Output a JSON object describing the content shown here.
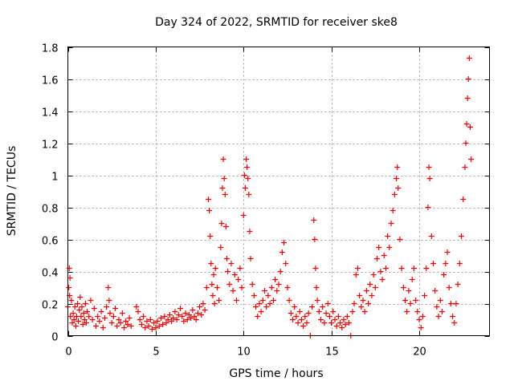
{
  "chart_data": {
    "type": "scatter",
    "title": "Day 324 of 2022, SRMTID for receiver ske8",
    "xlabel": "GPS time / hours",
    "ylabel": "SRMTID / TECUs",
    "xlim": [
      0,
      24
    ],
    "ylim": [
      0,
      1.8
    ],
    "xticks": [
      0,
      5,
      10,
      15,
      20
    ],
    "xtick_labels": [
      "0",
      "5",
      "10",
      "15",
      "20"
    ],
    "yticks": [
      0,
      0.2,
      0.4,
      0.6,
      0.8,
      1.0,
      1.2,
      1.4,
      1.6,
      1.8
    ],
    "ytick_labels": [
      "0",
      "0.2",
      "0.4",
      "0.6",
      "0.8",
      "1",
      "1.2",
      "1.4",
      "1.6",
      "1.8"
    ],
    "grid": true,
    "marker": "+",
    "color": "#ff0000",
    "series": [
      {
        "name": "SRMTID",
        "points": [
          [
            0.0,
            0.18
          ],
          [
            0.05,
            0.3
          ],
          [
            0.08,
            0.42
          ],
          [
            0.1,
            0.25
          ],
          [
            0.12,
            0.36
          ],
          [
            0.15,
            0.12
          ],
          [
            0.2,
            0.22
          ],
          [
            0.25,
            0.08
          ],
          [
            0.3,
            0.14
          ],
          [
            0.35,
            0.1
          ],
          [
            0.4,
            0.18
          ],
          [
            0.45,
            0.06
          ],
          [
            0.5,
            0.12
          ],
          [
            0.55,
            0.2
          ],
          [
            0.6,
            0.09
          ],
          [
            0.65,
            0.16
          ],
          [
            0.7,
            0.24
          ],
          [
            0.75,
            0.12
          ],
          [
            0.8,
            0.18
          ],
          [
            0.85,
            0.07
          ],
          [
            0.9,
            0.14
          ],
          [
            0.95,
            0.1
          ],
          [
            1.0,
            0.2
          ],
          [
            1.05,
            0.08
          ],
          [
            1.1,
            0.15
          ],
          [
            1.2,
            0.12
          ],
          [
            1.3,
            0.22
          ],
          [
            1.4,
            0.1
          ],
          [
            1.5,
            0.17
          ],
          [
            1.6,
            0.06
          ],
          [
            1.7,
            0.12
          ],
          [
            1.8,
            0.09
          ],
          [
            1.9,
            0.15
          ],
          [
            2.0,
            0.05
          ],
          [
            2.1,
            0.11
          ],
          [
            2.2,
            0.18
          ],
          [
            2.3,
            0.3
          ],
          [
            2.35,
            0.22
          ],
          [
            2.4,
            0.14
          ],
          [
            2.5,
            0.08
          ],
          [
            2.6,
            0.12
          ],
          [
            2.7,
            0.17
          ],
          [
            2.8,
            0.06
          ],
          [
            2.9,
            0.1
          ],
          [
            3.0,
            0.08
          ],
          [
            3.1,
            0.14
          ],
          [
            3.2,
            0.05
          ],
          [
            3.3,
            0.09
          ],
          [
            3.4,
            0.07
          ],
          [
            3.5,
            0.11
          ],
          [
            3.6,
            0.06
          ],
          [
            3.9,
            0.18
          ],
          [
            4.0,
            0.15
          ],
          [
            4.1,
            0.1
          ],
          [
            4.2,
            0.07
          ],
          [
            4.3,
            0.12
          ],
          [
            4.4,
            0.05
          ],
          [
            4.5,
            0.09
          ],
          [
            4.6,
            0.06
          ],
          [
            4.7,
            0.1
          ],
          [
            4.8,
            0.04
          ],
          [
            4.9,
            0.08
          ],
          [
            5.0,
            0.05
          ],
          [
            5.1,
            0.09
          ],
          [
            5.2,
            0.06
          ],
          [
            5.3,
            0.11
          ],
          [
            5.4,
            0.07
          ],
          [
            5.5,
            0.12
          ],
          [
            5.6,
            0.08
          ],
          [
            5.7,
            0.1
          ],
          [
            5.8,
            0.13
          ],
          [
            5.9,
            0.09
          ],
          [
            6.0,
            0.11
          ],
          [
            6.1,
            0.15
          ],
          [
            6.2,
            0.1
          ],
          [
            6.3,
            0.13
          ],
          [
            6.4,
            0.17
          ],
          [
            6.5,
            0.12
          ],
          [
            6.6,
            0.09
          ],
          [
            6.7,
            0.14
          ],
          [
            6.8,
            0.1
          ],
          [
            6.9,
            0.13
          ],
          [
            7.0,
            0.11
          ],
          [
            7.1,
            0.16
          ],
          [
            7.2,
            0.12
          ],
          [
            7.3,
            0.1
          ],
          [
            7.4,
            0.14
          ],
          [
            7.5,
            0.18
          ],
          [
            7.6,
            0.13
          ],
          [
            7.7,
            0.2
          ],
          [
            7.8,
            0.16
          ],
          [
            7.9,
            0.3
          ],
          [
            8.0,
            0.85
          ],
          [
            8.05,
            0.78
          ],
          [
            8.1,
            0.62
          ],
          [
            8.15,
            0.45
          ],
          [
            8.2,
            0.32
          ],
          [
            8.25,
            0.25
          ],
          [
            8.3,
            0.38
          ],
          [
            8.35,
            0.2
          ],
          [
            8.4,
            0.42
          ],
          [
            8.5,
            0.3
          ],
          [
            8.6,
            0.22
          ],
          [
            8.7,
            0.55
          ],
          [
            8.75,
            0.7
          ],
          [
            8.8,
            0.92
          ],
          [
            8.85,
            1.1
          ],
          [
            8.9,
            0.98
          ],
          [
            8.95,
            0.88
          ],
          [
            9.0,
            0.68
          ],
          [
            9.05,
            0.48
          ],
          [
            9.1,
            0.4
          ],
          [
            9.2,
            0.32
          ],
          [
            9.3,
            0.45
          ],
          [
            9.4,
            0.28
          ],
          [
            9.5,
            0.38
          ],
          [
            9.6,
            0.22
          ],
          [
            9.7,
            0.35
          ],
          [
            9.8,
            0.42
          ],
          [
            9.9,
            0.3
          ],
          [
            10.0,
            0.75
          ],
          [
            10.05,
            1.0
          ],
          [
            10.1,
            0.92
          ],
          [
            10.15,
            1.1
          ],
          [
            10.2,
            1.05
          ],
          [
            10.25,
            0.98
          ],
          [
            10.3,
            0.88
          ],
          [
            10.35,
            0.65
          ],
          [
            10.4,
            0.48
          ],
          [
            10.5,
            0.32
          ],
          [
            10.6,
            0.25
          ],
          [
            10.7,
            0.18
          ],
          [
            10.8,
            0.12
          ],
          [
            10.9,
            0.2
          ],
          [
            11.0,
            0.15
          ],
          [
            11.1,
            0.22
          ],
          [
            11.2,
            0.28
          ],
          [
            11.3,
            0.18
          ],
          [
            11.4,
            0.25
          ],
          [
            11.5,
            0.2
          ],
          [
            11.6,
            0.3
          ],
          [
            11.7,
            0.22
          ],
          [
            11.8,
            0.35
          ],
          [
            11.9,
            0.28
          ],
          [
            12.0,
            0.32
          ],
          [
            12.1,
            0.4
          ],
          [
            12.2,
            0.52
          ],
          [
            12.3,
            0.58
          ],
          [
            12.4,
            0.45
          ],
          [
            12.5,
            0.3
          ],
          [
            12.6,
            0.22
          ],
          [
            12.7,
            0.14
          ],
          [
            12.8,
            0.1
          ],
          [
            12.9,
            0.18
          ],
          [
            13.0,
            0.12
          ],
          [
            13.1,
            0.08
          ],
          [
            13.2,
            0.15
          ],
          [
            13.3,
            0.1
          ],
          [
            13.4,
            0.06
          ],
          [
            13.5,
            0.12
          ],
          [
            13.6,
            0.08
          ],
          [
            13.7,
            0.14
          ],
          [
            13.8,
            0.0
          ],
          [
            13.9,
            0.18
          ],
          [
            14.0,
            0.72
          ],
          [
            14.05,
            0.6
          ],
          [
            14.1,
            0.42
          ],
          [
            14.15,
            0.3
          ],
          [
            14.2,
            0.22
          ],
          [
            14.3,
            0.15
          ],
          [
            14.4,
            0.1
          ],
          [
            14.5,
            0.18
          ],
          [
            14.6,
            0.08
          ],
          [
            14.7,
            0.14
          ],
          [
            14.8,
            0.2
          ],
          [
            14.9,
            0.12
          ],
          [
            15.0,
            0.08
          ],
          [
            15.1,
            0.15
          ],
          [
            15.2,
            0.1
          ],
          [
            15.3,
            0.06
          ],
          [
            15.4,
            0.12
          ],
          [
            15.5,
            0.08
          ],
          [
            15.6,
            0.05
          ],
          [
            15.7,
            0.1
          ],
          [
            15.8,
            0.07
          ],
          [
            15.9,
            0.12
          ],
          [
            16.0,
            0.08
          ],
          [
            16.1,
            0.0
          ],
          [
            16.2,
            0.15
          ],
          [
            16.3,
            0.2
          ],
          [
            16.4,
            0.38
          ],
          [
            16.5,
            0.42
          ],
          [
            16.6,
            0.25
          ],
          [
            16.7,
            0.18
          ],
          [
            16.8,
            0.22
          ],
          [
            16.9,
            0.15
          ],
          [
            17.0,
            0.28
          ],
          [
            17.1,
            0.2
          ],
          [
            17.2,
            0.32
          ],
          [
            17.3,
            0.25
          ],
          [
            17.4,
            0.38
          ],
          [
            17.5,
            0.3
          ],
          [
            17.6,
            0.48
          ],
          [
            17.7,
            0.55
          ],
          [
            17.8,
            0.4
          ],
          [
            17.9,
            0.35
          ],
          [
            18.0,
            0.5
          ],
          [
            18.1,
            0.42
          ],
          [
            18.2,
            0.62
          ],
          [
            18.3,
            0.55
          ],
          [
            18.4,
            0.7
          ],
          [
            18.5,
            0.78
          ],
          [
            18.6,
            0.88
          ],
          [
            18.7,
            0.98
          ],
          [
            18.75,
            1.05
          ],
          [
            18.8,
            0.92
          ],
          [
            18.9,
            0.6
          ],
          [
            19.0,
            0.42
          ],
          [
            19.1,
            0.3
          ],
          [
            19.2,
            0.22
          ],
          [
            19.3,
            0.15
          ],
          [
            19.4,
            0.28
          ],
          [
            19.5,
            0.2
          ],
          [
            19.6,
            0.35
          ],
          [
            19.7,
            0.42
          ],
          [
            19.8,
            0.22
          ],
          [
            19.9,
            0.15
          ],
          [
            20.0,
            0.1
          ],
          [
            20.1,
            0.05
          ],
          [
            20.2,
            0.12
          ],
          [
            20.3,
            0.25
          ],
          [
            20.4,
            0.42
          ],
          [
            20.5,
            0.8
          ],
          [
            20.55,
            1.05
          ],
          [
            20.6,
            0.98
          ],
          [
            20.7,
            0.62
          ],
          [
            20.8,
            0.45
          ],
          [
            20.9,
            0.28
          ],
          [
            21.0,
            0.18
          ],
          [
            21.1,
            0.12
          ],
          [
            21.2,
            0.22
          ],
          [
            21.3,
            0.15
          ],
          [
            21.4,
            0.38
          ],
          [
            21.5,
            0.45
          ],
          [
            21.6,
            0.52
          ],
          [
            21.7,
            0.3
          ],
          [
            21.8,
            0.2
          ],
          [
            21.9,
            0.12
          ],
          [
            22.0,
            0.08
          ],
          [
            22.1,
            0.2
          ],
          [
            22.2,
            0.32
          ],
          [
            22.3,
            0.45
          ],
          [
            22.4,
            0.62
          ],
          [
            22.5,
            0.85
          ],
          [
            22.6,
            1.05
          ],
          [
            22.65,
            1.2
          ],
          [
            22.7,
            1.32
          ],
          [
            22.75,
            1.48
          ],
          [
            22.8,
            1.6
          ],
          [
            22.85,
            1.73
          ],
          [
            22.9,
            1.3
          ],
          [
            22.95,
            1.1
          ]
        ]
      }
    ]
  }
}
